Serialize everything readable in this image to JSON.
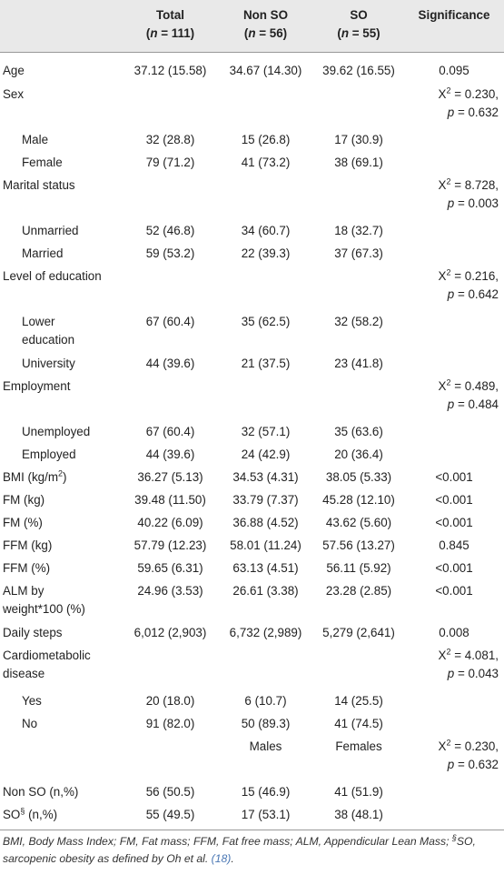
{
  "header": {
    "col0": "",
    "total_label": "Total",
    "total_n": "111",
    "nonso_label": "Non SO",
    "nonso_n": "56",
    "so_label": "SO",
    "so_n": "55",
    "sig_label": "Significance",
    "n_prefix": "n",
    "n_eq": " = "
  },
  "rows": {
    "age": {
      "label": "Age",
      "total": "37.12 (15.58)",
      "nonso": "34.67 (14.30)",
      "so": "39.62 (16.55)",
      "sig": "0.095"
    },
    "sex": {
      "label": "Sex",
      "chi": "X",
      "chi_sup": "2",
      "chi_val": " = 0.230,",
      "p": "p",
      "p_val": " = 0.632"
    },
    "male": {
      "label": "Male",
      "total": "32 (28.8)",
      "nonso": "15 (26.8)",
      "so": "17 (30.9)"
    },
    "female": {
      "label": "Female",
      "total": "79 (71.2)",
      "nonso": "41 (73.2)",
      "so": "38 (69.1)"
    },
    "marital": {
      "label": "Marital status",
      "chi": "X",
      "chi_sup": "2",
      "chi_val": " = 8.728,",
      "p": "p",
      "p_val": " = 0.003"
    },
    "unmarried": {
      "label": "Unmarried",
      "total": "52 (46.8)",
      "nonso": "34 (60.7)",
      "so": "18 (32.7)"
    },
    "married": {
      "label": "Married",
      "total": "59 (53.2)",
      "nonso": "22 (39.3)",
      "so": "37 (67.3)"
    },
    "education": {
      "label": "Level of education",
      "chi": "X",
      "chi_sup": "2",
      "chi_val": " = 0.216,",
      "p": "p",
      "p_val": " = 0.642"
    },
    "lower": {
      "label1": "Lower",
      "label2": "education",
      "total": "67 (60.4)",
      "nonso": "35 (62.5)",
      "so": "32 (58.2)"
    },
    "university": {
      "label": "University",
      "total": "44 (39.6)",
      "nonso": "21 (37.5)",
      "so": "23 (41.8)"
    },
    "employment": {
      "label": "Employment",
      "chi": "X",
      "chi_sup": "2",
      "chi_val": " = 0.489,",
      "p": "p",
      "p_val": " = 0.484"
    },
    "unemployed": {
      "label": "Unemployed",
      "total": "67 (60.4)",
      "nonso": "32 (57.1)",
      "so": "35 (63.6)"
    },
    "employed": {
      "label": "Employed",
      "total": "44 (39.6)",
      "nonso": "24 (42.9)",
      "so": "20 (36.4)"
    },
    "bmi": {
      "label": "BMI (kg/m",
      "label_sup": "2",
      "label_end": ")",
      "total": "36.27 (5.13)",
      "nonso": "34.53 (4.31)",
      "so": "38.05 (5.33)",
      "sig": "<0.001"
    },
    "fmkg": {
      "label": "FM (kg)",
      "total": "39.48 (11.50)",
      "nonso": "33.79 (7.37)",
      "so": "45.28 (12.10)",
      "sig": "<0.001"
    },
    "fmpct": {
      "label": "FM (%)",
      "total": "40.22 (6.09)",
      "nonso": "36.88 (4.52)",
      "so": "43.62 (5.60)",
      "sig": "<0.001"
    },
    "ffmkg": {
      "label": "FFM (kg)",
      "total": "57.79 (12.23)",
      "nonso": "58.01 (11.24)",
      "so": "57.56 (13.27)",
      "sig": "0.845"
    },
    "ffmpct": {
      "label": "FFM (%)",
      "total": "59.65 (6.31)",
      "nonso": "63.13 (4.51)",
      "so": "56.11 (5.92)",
      "sig": "<0.001"
    },
    "alm": {
      "label1": "ALM by",
      "label2": "weight*100 (%)",
      "total": "24.96 (3.53)",
      "nonso": "26.61 (3.38)",
      "so": "23.28 (2.85)",
      "sig": "<0.001"
    },
    "steps": {
      "label": "Daily steps",
      "total": "6,012 (2,903)",
      "nonso": "6,732 (2,989)",
      "so": "5,279 (2,641)",
      "sig": "0.008"
    },
    "cardio": {
      "label1": "Cardiometabolic",
      "label2": "disease",
      "chi": "X",
      "chi_sup": "2",
      "chi_val": " = 4.081,",
      "p": "p",
      "p_val": " = 0.043"
    },
    "yes": {
      "label": "Yes",
      "total": "20 (18.0)",
      "nonso": "6 (10.7)",
      "so": "14 (25.5)"
    },
    "no": {
      "label": "No",
      "total": "91 (82.0)",
      "nonso": "50 (89.3)",
      "so": "41 (74.5)"
    },
    "sexhdr": {
      "males": "Males",
      "females": "Females",
      "chi": "X",
      "chi_sup": "2",
      "chi_val": " = 0.230,",
      "p": "p",
      "p_val": " = 0.632"
    },
    "nonso_n": {
      "label": "Non SO (n,%)",
      "total": "56 (50.5)",
      "nonso": "15 (46.9)",
      "so": "41 (51.9)"
    },
    "so_n": {
      "label": "SO",
      "label_sup": "§",
      "label_end": " (n,%)",
      "total": "55 (49.5)",
      "nonso": "17 (53.1)",
      "so": "38 (48.1)"
    }
  },
  "footnote": {
    "text1": "BMI, Body Mass Index; FM, Fat mass; FFM, Fat free mass; ALM, Appendicular Lean Mass; ",
    "sup": "§",
    "text2": "SO, sarcopenic obesity as defined by Oh et al. ",
    "ref": "(18)",
    "end": "."
  }
}
